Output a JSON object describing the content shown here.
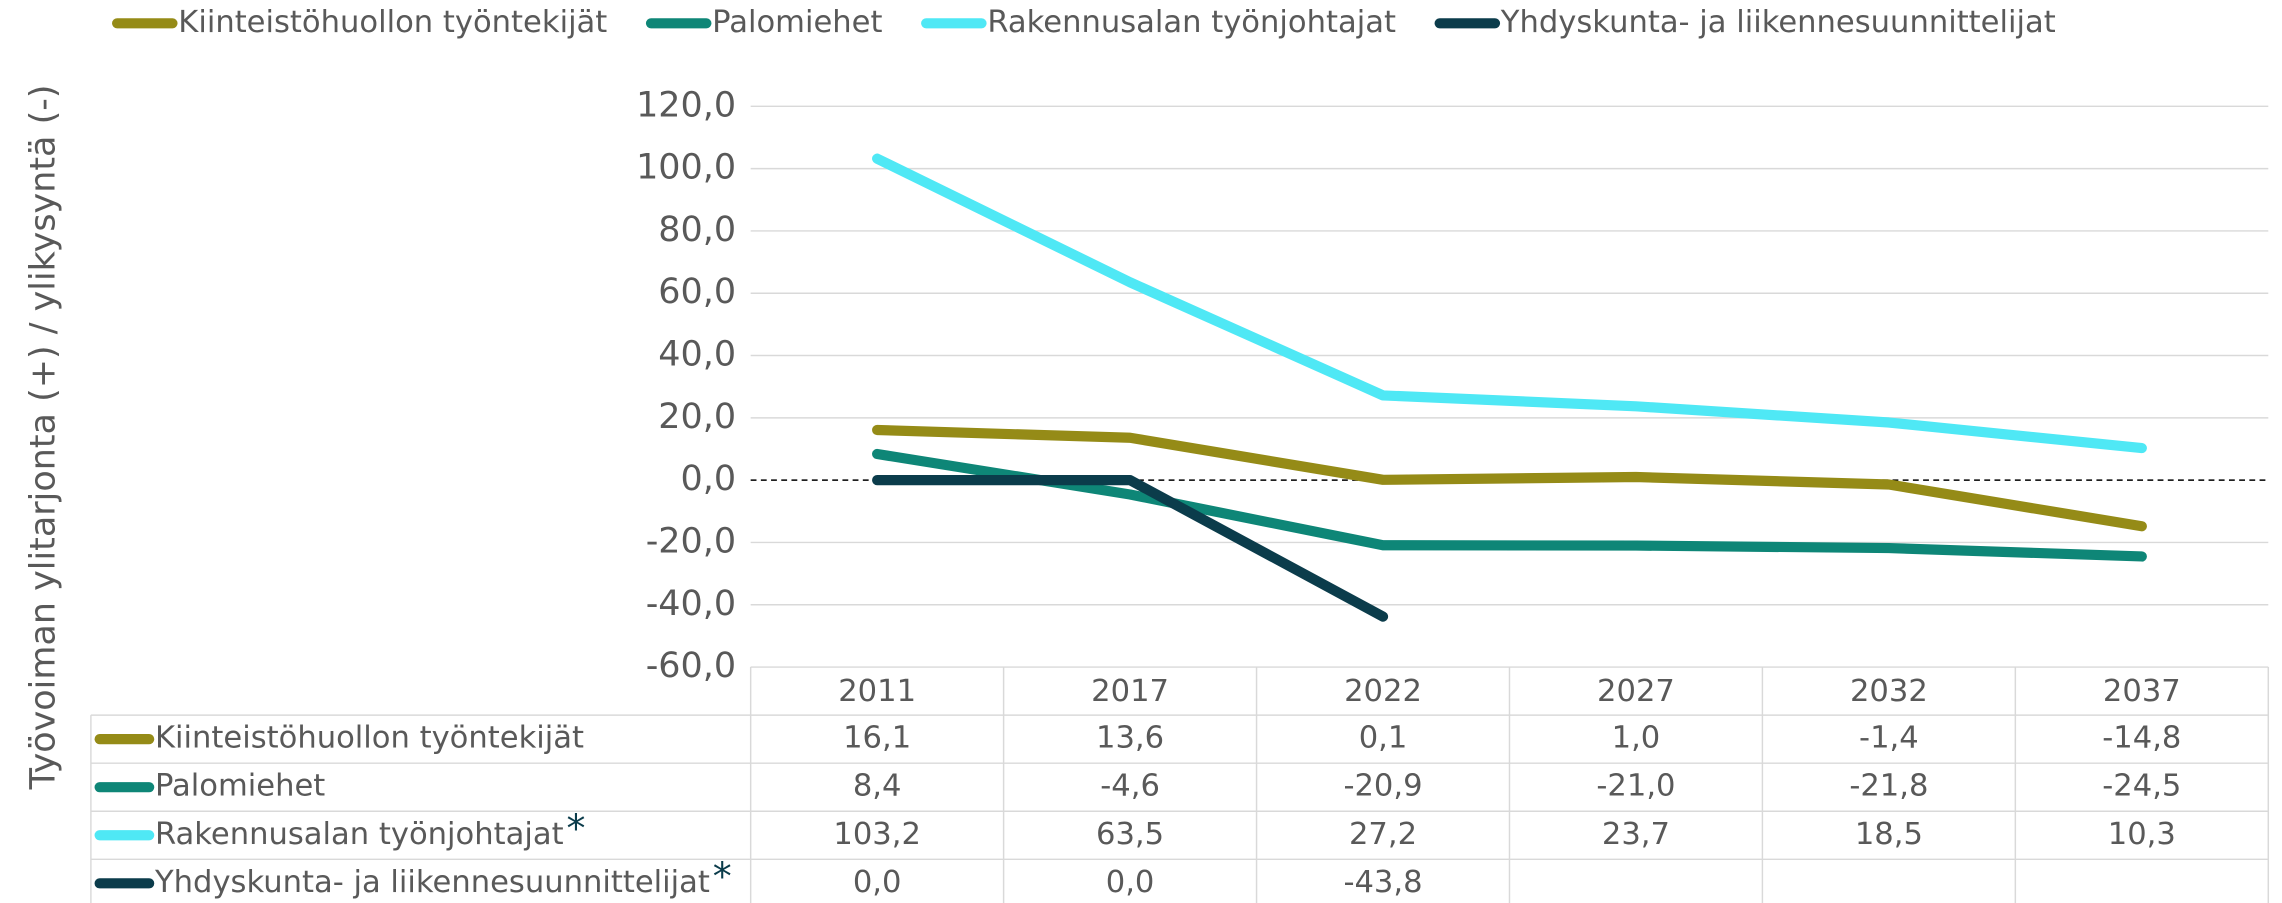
{
  "chart_data": {
    "type": "line",
    "y_label": "Työvoiman ylitarjonta (+) / ylikysyntä (-)",
    "categories": [
      "2011",
      "2017",
      "2022",
      "2027",
      "2032",
      "2037"
    ],
    "series": [
      {
        "name": "Kiinteistöhuollon työntekijät",
        "color": "#958b17",
        "values": [
          16.1,
          13.6,
          0.1,
          1.0,
          -1.4,
          -14.8
        ],
        "value_labels": [
          "16,1",
          "13,6",
          "0,1",
          "1,0",
          "-1,4",
          "-14,8"
        ]
      },
      {
        "name": "Palomiehet",
        "color": "#0e8677",
        "values": [
          8.4,
          -4.6,
          -20.9,
          -21.0,
          -21.8,
          -24.5
        ],
        "value_labels": [
          "8,4",
          "-4,6",
          "-20,9",
          "-21,0",
          "-21,8",
          "-24,5"
        ]
      },
      {
        "name": "Rakennusalan työnjohtajat",
        "color": "#4fe8f5",
        "table_suffix": "*",
        "values": [
          103.2,
          63.5,
          27.2,
          23.7,
          18.5,
          10.3
        ],
        "value_labels": [
          "103,2",
          "63,5",
          "27,2",
          "23,7",
          "18,5",
          "10,3"
        ]
      },
      {
        "name": "Yhdyskunta- ja liikennesuunnittelijat",
        "color": "#0b3c4b",
        "table_suffix": "*",
        "values": [
          0.0,
          0.0,
          -43.8,
          null,
          null,
          null
        ],
        "value_labels": [
          "0,0",
          "0,0",
          "-43,8",
          null,
          null,
          null
        ]
      }
    ],
    "ylim": [
      -60,
      120
    ],
    "yticks": [
      {
        "value": -60,
        "label": "-60,0"
      },
      {
        "value": -40,
        "label": "-40,0"
      },
      {
        "value": -20,
        "label": "-20,0"
      },
      {
        "value": 0,
        "label": "0,0"
      },
      {
        "value": 20,
        "label": "20,0"
      },
      {
        "value": 40,
        "label": "40,0"
      },
      {
        "value": 60,
        "label": "60,0"
      },
      {
        "value": 80,
        "label": "80,0"
      },
      {
        "value": 100,
        "label": "100,0"
      },
      {
        "value": 120,
        "label": "120,0"
      }
    ],
    "grid": true,
    "zero_line": "dashed",
    "legend": "top",
    "data_table": true
  }
}
